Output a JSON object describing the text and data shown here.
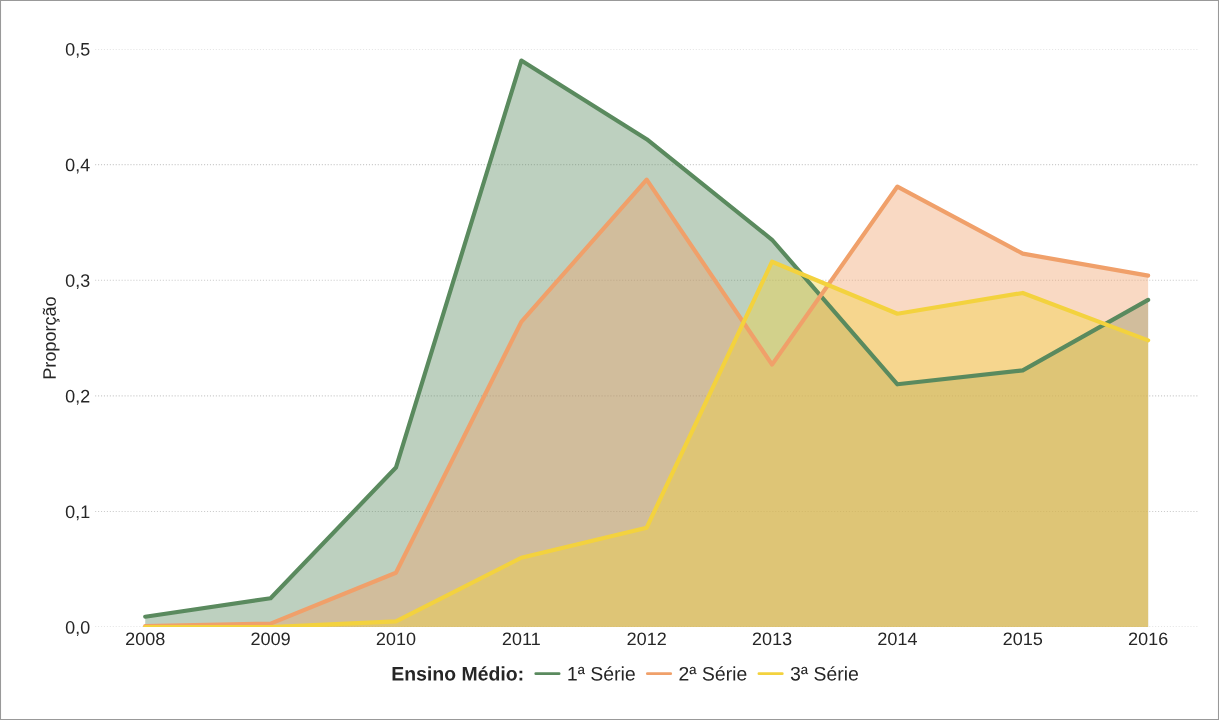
{
  "chart_data": {
    "type": "area",
    "ylabel": "Proporção",
    "legend_title": "Ensino Médio:",
    "x": [
      2008,
      2009,
      2010,
      2011,
      2012,
      2013,
      2014,
      2015,
      2016
    ],
    "series": [
      {
        "name": "1ª Série",
        "color": "#5a8a5e",
        "values": [
          0.009,
          0.025,
          0.138,
          0.49,
          0.422,
          0.335,
          0.21,
          0.222,
          0.283
        ]
      },
      {
        "name": "2ª Série",
        "color": "#f0a06a",
        "values": [
          0.001,
          0.003,
          0.047,
          0.264,
          0.387,
          0.227,
          0.381,
          0.323,
          0.304
        ]
      },
      {
        "name": "3ª Série",
        "color": "#f3d23e",
        "values": [
          0,
          0,
          0.005,
          0.06,
          0.086,
          0.316,
          0.271,
          0.289,
          0.248
        ]
      }
    ],
    "xlim": [
      2007.6,
      2016.4
    ],
    "xticks": [
      2008,
      2009,
      2010,
      2011,
      2012,
      2013,
      2014,
      2015,
      2016
    ],
    "ylim": [
      0,
      0.5
    ],
    "yticks": [
      {
        "value": 0,
        "label": "0,0"
      },
      {
        "value": 0.1,
        "label": "0,1"
      },
      {
        "value": 0.2,
        "label": "0,2"
      },
      {
        "value": 0.3,
        "label": "0,3"
      },
      {
        "value": 0.4,
        "label": "0,4"
      },
      {
        "value": 0.5,
        "label": "0,5"
      }
    ],
    "grid": "y",
    "legend": "bottom",
    "line_style": "solid"
  }
}
